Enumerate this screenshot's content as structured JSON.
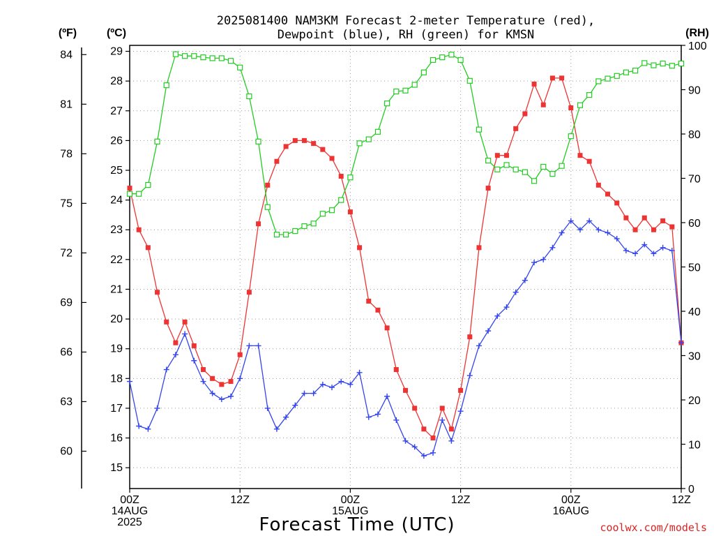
{
  "chart_data": {
    "type": "line",
    "title_lines": [
      "2025081400 NAM3KM Forecast 2-meter Temperature (red),",
      "Dewpoint (blue), RH (green) for KMSN"
    ],
    "xlabel": "Forecast Time (UTC)",
    "credit": "coolwx.com/models",
    "colors": {
      "temperature": "#ee3333",
      "dewpoint": "#3344ee",
      "rh": "#22cc22"
    },
    "x_ticks": [
      {
        "hour": 0,
        "lines": [
          "00Z",
          "14AUG",
          "2025"
        ]
      },
      {
        "hour": 12,
        "lines": [
          "12Z"
        ]
      },
      {
        "hour": 24,
        "lines": [
          "00Z",
          "15AUG"
        ]
      },
      {
        "hour": 36,
        "lines": [
          "12Z"
        ]
      },
      {
        "hour": 48,
        "lines": [
          "00Z",
          "16AUG"
        ]
      },
      {
        "hour": 60,
        "lines": [
          "12Z"
        ]
      }
    ],
    "x_range": [
      0,
      60
    ],
    "left_axis_c": {
      "label": "(ºC)",
      "range": [
        14.3,
        29.2
      ],
      "ticks": [
        15,
        16,
        17,
        18,
        19,
        20,
        21,
        22,
        23,
        24,
        25,
        26,
        27,
        28,
        29
      ]
    },
    "left_axis_f": {
      "label": "(ºF)",
      "ticks": [
        60,
        63,
        66,
        69,
        72,
        75,
        78,
        81,
        84
      ]
    },
    "right_axis_rh": {
      "label": "(RH)",
      "range": [
        0,
        100
      ],
      "ticks": [
        0,
        10,
        20,
        30,
        40,
        50,
        60,
        70,
        80,
        90,
        100
      ]
    },
    "grid": true,
    "series": [
      {
        "key": "temperature",
        "unit": "C",
        "marker": "filled-square",
        "x": [
          0,
          1,
          2,
          3,
          4,
          5,
          6,
          7,
          8,
          9,
          10,
          11,
          12,
          13,
          14,
          15,
          16,
          17,
          18,
          19,
          20,
          21,
          22,
          23,
          24,
          25,
          26,
          27,
          28,
          29,
          30,
          31,
          32,
          33,
          34,
          35,
          36,
          37,
          38,
          39,
          40,
          41,
          42,
          43,
          44,
          45,
          46,
          47,
          48,
          49,
          50,
          51,
          52,
          53,
          54,
          55,
          56,
          57,
          58,
          59,
          60
        ],
        "values": [
          24.4,
          23.0,
          22.4,
          20.9,
          19.9,
          19.2,
          19.9,
          19.1,
          18.3,
          18.0,
          17.8,
          17.9,
          18.8,
          20.9,
          23.2,
          24.5,
          25.3,
          25.8,
          26.0,
          26.0,
          25.9,
          25.7,
          25.4,
          24.8,
          23.6,
          22.4,
          20.6,
          20.3,
          19.7,
          18.3,
          17.6,
          17.0,
          16.3,
          16.0,
          17.0,
          16.3,
          17.6,
          19.4,
          22.4,
          24.4,
          25.5,
          25.5,
          26.4,
          26.9,
          27.9,
          27.2,
          28.1,
          28.1,
          27.1,
          25.5,
          25.3,
          24.5,
          24.2,
          23.9,
          23.4,
          23.0,
          23.4,
          23.0,
          23.3,
          23.1,
          19.2
        ]
      },
      {
        "key": "dewpoint",
        "unit": "C",
        "marker": "plus",
        "x": [
          0,
          1,
          2,
          3,
          4,
          5,
          6,
          7,
          8,
          9,
          10,
          11,
          12,
          13,
          14,
          15,
          16,
          17,
          18,
          19,
          20,
          21,
          22,
          23,
          24,
          25,
          26,
          27,
          28,
          29,
          30,
          31,
          32,
          33,
          34,
          35,
          36,
          37,
          38,
          39,
          40,
          41,
          42,
          43,
          44,
          45,
          46,
          47,
          48,
          49,
          50,
          51,
          52,
          53,
          54,
          55,
          56,
          57,
          58,
          59,
          60
        ],
        "values": [
          17.9,
          16.4,
          16.3,
          17.0,
          18.3,
          18.8,
          19.5,
          18.6,
          17.9,
          17.5,
          17.3,
          17.4,
          18.0,
          19.1,
          19.1,
          17.0,
          16.3,
          16.7,
          17.1,
          17.5,
          17.5,
          17.8,
          17.7,
          17.9,
          17.8,
          18.2,
          16.7,
          16.8,
          17.4,
          16.6,
          15.9,
          15.7,
          15.4,
          15.5,
          16.6,
          15.9,
          16.9,
          18.1,
          19.1,
          19.6,
          20.1,
          20.4,
          20.9,
          21.3,
          21.9,
          22.0,
          22.4,
          22.9,
          23.3,
          23.0,
          23.3,
          23.0,
          22.9,
          22.7,
          22.3,
          22.2,
          22.5,
          22.2,
          22.4,
          22.3,
          19.2
        ]
      },
      {
        "key": "rh",
        "unit": "%",
        "marker": "open-square",
        "x": [
          0,
          1,
          2,
          3,
          4,
          5,
          6,
          7,
          8,
          9,
          10,
          11,
          12,
          13,
          14,
          15,
          16,
          17,
          18,
          19,
          20,
          21,
          22,
          23,
          24,
          25,
          26,
          27,
          28,
          29,
          30,
          31,
          32,
          33,
          34,
          35,
          36,
          37,
          38,
          39,
          40,
          41,
          42,
          43,
          44,
          45,
          46,
          47,
          48,
          49,
          50,
          51,
          52,
          53,
          54,
          55,
          56,
          57,
          58,
          59,
          60
        ],
        "values": [
          66.5,
          66.5,
          68.5,
          78.3,
          91.0,
          98.0,
          97.6,
          97.6,
          97.3,
          97.1,
          97.1,
          96.5,
          95.0,
          88.5,
          78.3,
          63.5,
          57.3,
          57.3,
          58.1,
          59.2,
          59.8,
          62.0,
          62.8,
          65.1,
          70.2,
          77.9,
          78.8,
          80.5,
          86.9,
          89.6,
          89.8,
          91.1,
          93.9,
          96.7,
          97.3,
          97.9,
          96.7,
          92.0,
          81.0,
          74.0,
          72.0,
          73.0,
          72.0,
          71.4,
          69.4,
          72.6,
          71.0,
          72.8,
          79.5,
          86.5,
          88.8,
          91.9,
          92.5,
          93.1,
          93.9,
          94.3,
          96.0,
          95.5,
          95.9,
          95.4,
          95.9
        ]
      }
    ]
  }
}
